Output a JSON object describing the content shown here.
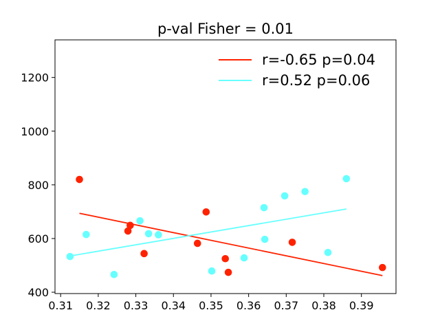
{
  "chart_data": {
    "type": "scatter",
    "title": "p-val Fisher = 0.01",
    "xlabel": "",
    "ylabel": "",
    "xlim": [
      0.3085,
      0.3992
    ],
    "ylim": [
      395,
      1340
    ],
    "xticks": [
      0.31,
      0.32,
      0.33,
      0.34,
      0.35,
      0.36,
      0.37,
      0.38,
      0.39
    ],
    "xtick_labels": [
      "0.31",
      "0.32",
      "0.33",
      "0.34",
      "0.35",
      "0.36",
      "0.37",
      "0.38",
      "0.39"
    ],
    "yticks": [
      400,
      600,
      800,
      1000,
      1200
    ],
    "ytick_labels": [
      "400",
      "600",
      "800",
      "1000",
      "1200"
    ],
    "grid": false,
    "legend": "top-right",
    "series": [
      {
        "name": "r=-0.65 p=0.04",
        "color": "#ff2200",
        "points": [
          [
            0.315,
            820
          ],
          [
            0.3279,
            628
          ],
          [
            0.3285,
            649
          ],
          [
            0.3322,
            544
          ],
          [
            0.3464,
            582
          ],
          [
            0.3487,
            699
          ],
          [
            0.3538,
            525
          ],
          [
            0.3546,
            474
          ],
          [
            0.3716,
            586
          ],
          [
            0.3956,
            492
          ]
        ],
        "fit": [
          [
            0.315,
            694
          ],
          [
            0.3956,
            462
          ]
        ]
      },
      {
        "name": "r=0.52 p=0.06",
        "color": "#66ffff",
        "points": [
          [
            0.3125,
            533
          ],
          [
            0.3168,
            615
          ],
          [
            0.3242,
            466
          ],
          [
            0.3311,
            666
          ],
          [
            0.3334,
            618
          ],
          [
            0.336,
            614
          ],
          [
            0.3502,
            479
          ],
          [
            0.3588,
            528
          ],
          [
            0.3641,
            715
          ],
          [
            0.3643,
            597
          ],
          [
            0.3696,
            759
          ],
          [
            0.375,
            775
          ],
          [
            0.3811,
            548
          ],
          [
            0.386,
            823
          ]
        ],
        "fit": [
          [
            0.3125,
            535
          ],
          [
            0.386,
            710
          ]
        ]
      }
    ]
  }
}
